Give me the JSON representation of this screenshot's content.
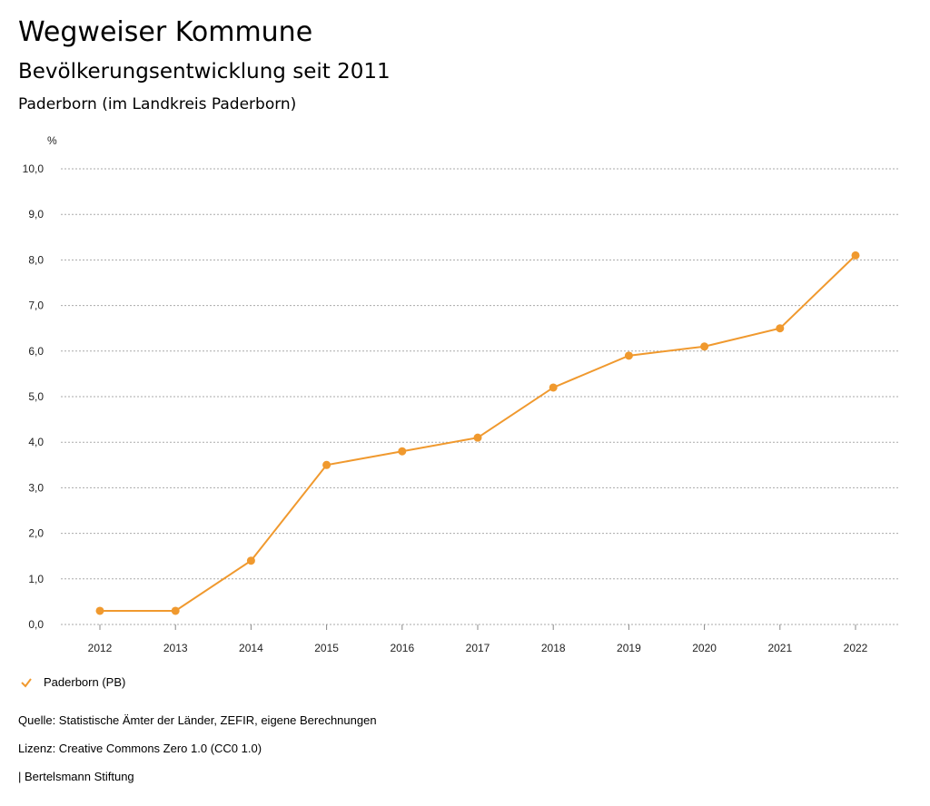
{
  "header": {
    "title": "Wegweiser Kommune",
    "subtitle": "Bevölkerungsentwicklung seit 2011",
    "region": "Paderborn (im Landkreis Paderborn)"
  },
  "chart_data": {
    "type": "line",
    "ylabel": "%",
    "ylim": [
      0,
      10
    ],
    "yticks": [
      "0,0",
      "1,0",
      "2,0",
      "3,0",
      "4,0",
      "5,0",
      "6,0",
      "7,0",
      "8,0",
      "9,0",
      "10,0"
    ],
    "x": [
      "2012",
      "2013",
      "2014",
      "2015",
      "2016",
      "2017",
      "2018",
      "2019",
      "2020",
      "2021",
      "2022"
    ],
    "series": [
      {
        "name": "Paderborn (PB)",
        "color": "#f0992e",
        "values": [
          0.3,
          0.3,
          1.4,
          3.5,
          3.8,
          4.1,
          5.2,
          5.9,
          6.1,
          6.5,
          8.1
        ]
      }
    ],
    "grid": true,
    "legend": "bottom-left"
  },
  "footer": {
    "source": "Quelle: Statistische Ämter der Länder, ZEFIR, eigene Berechnungen",
    "license": "Lizenz: Creative Commons Zero 1.0 (CC0 1.0)",
    "publisher": "| Bertelsmann Stiftung"
  }
}
